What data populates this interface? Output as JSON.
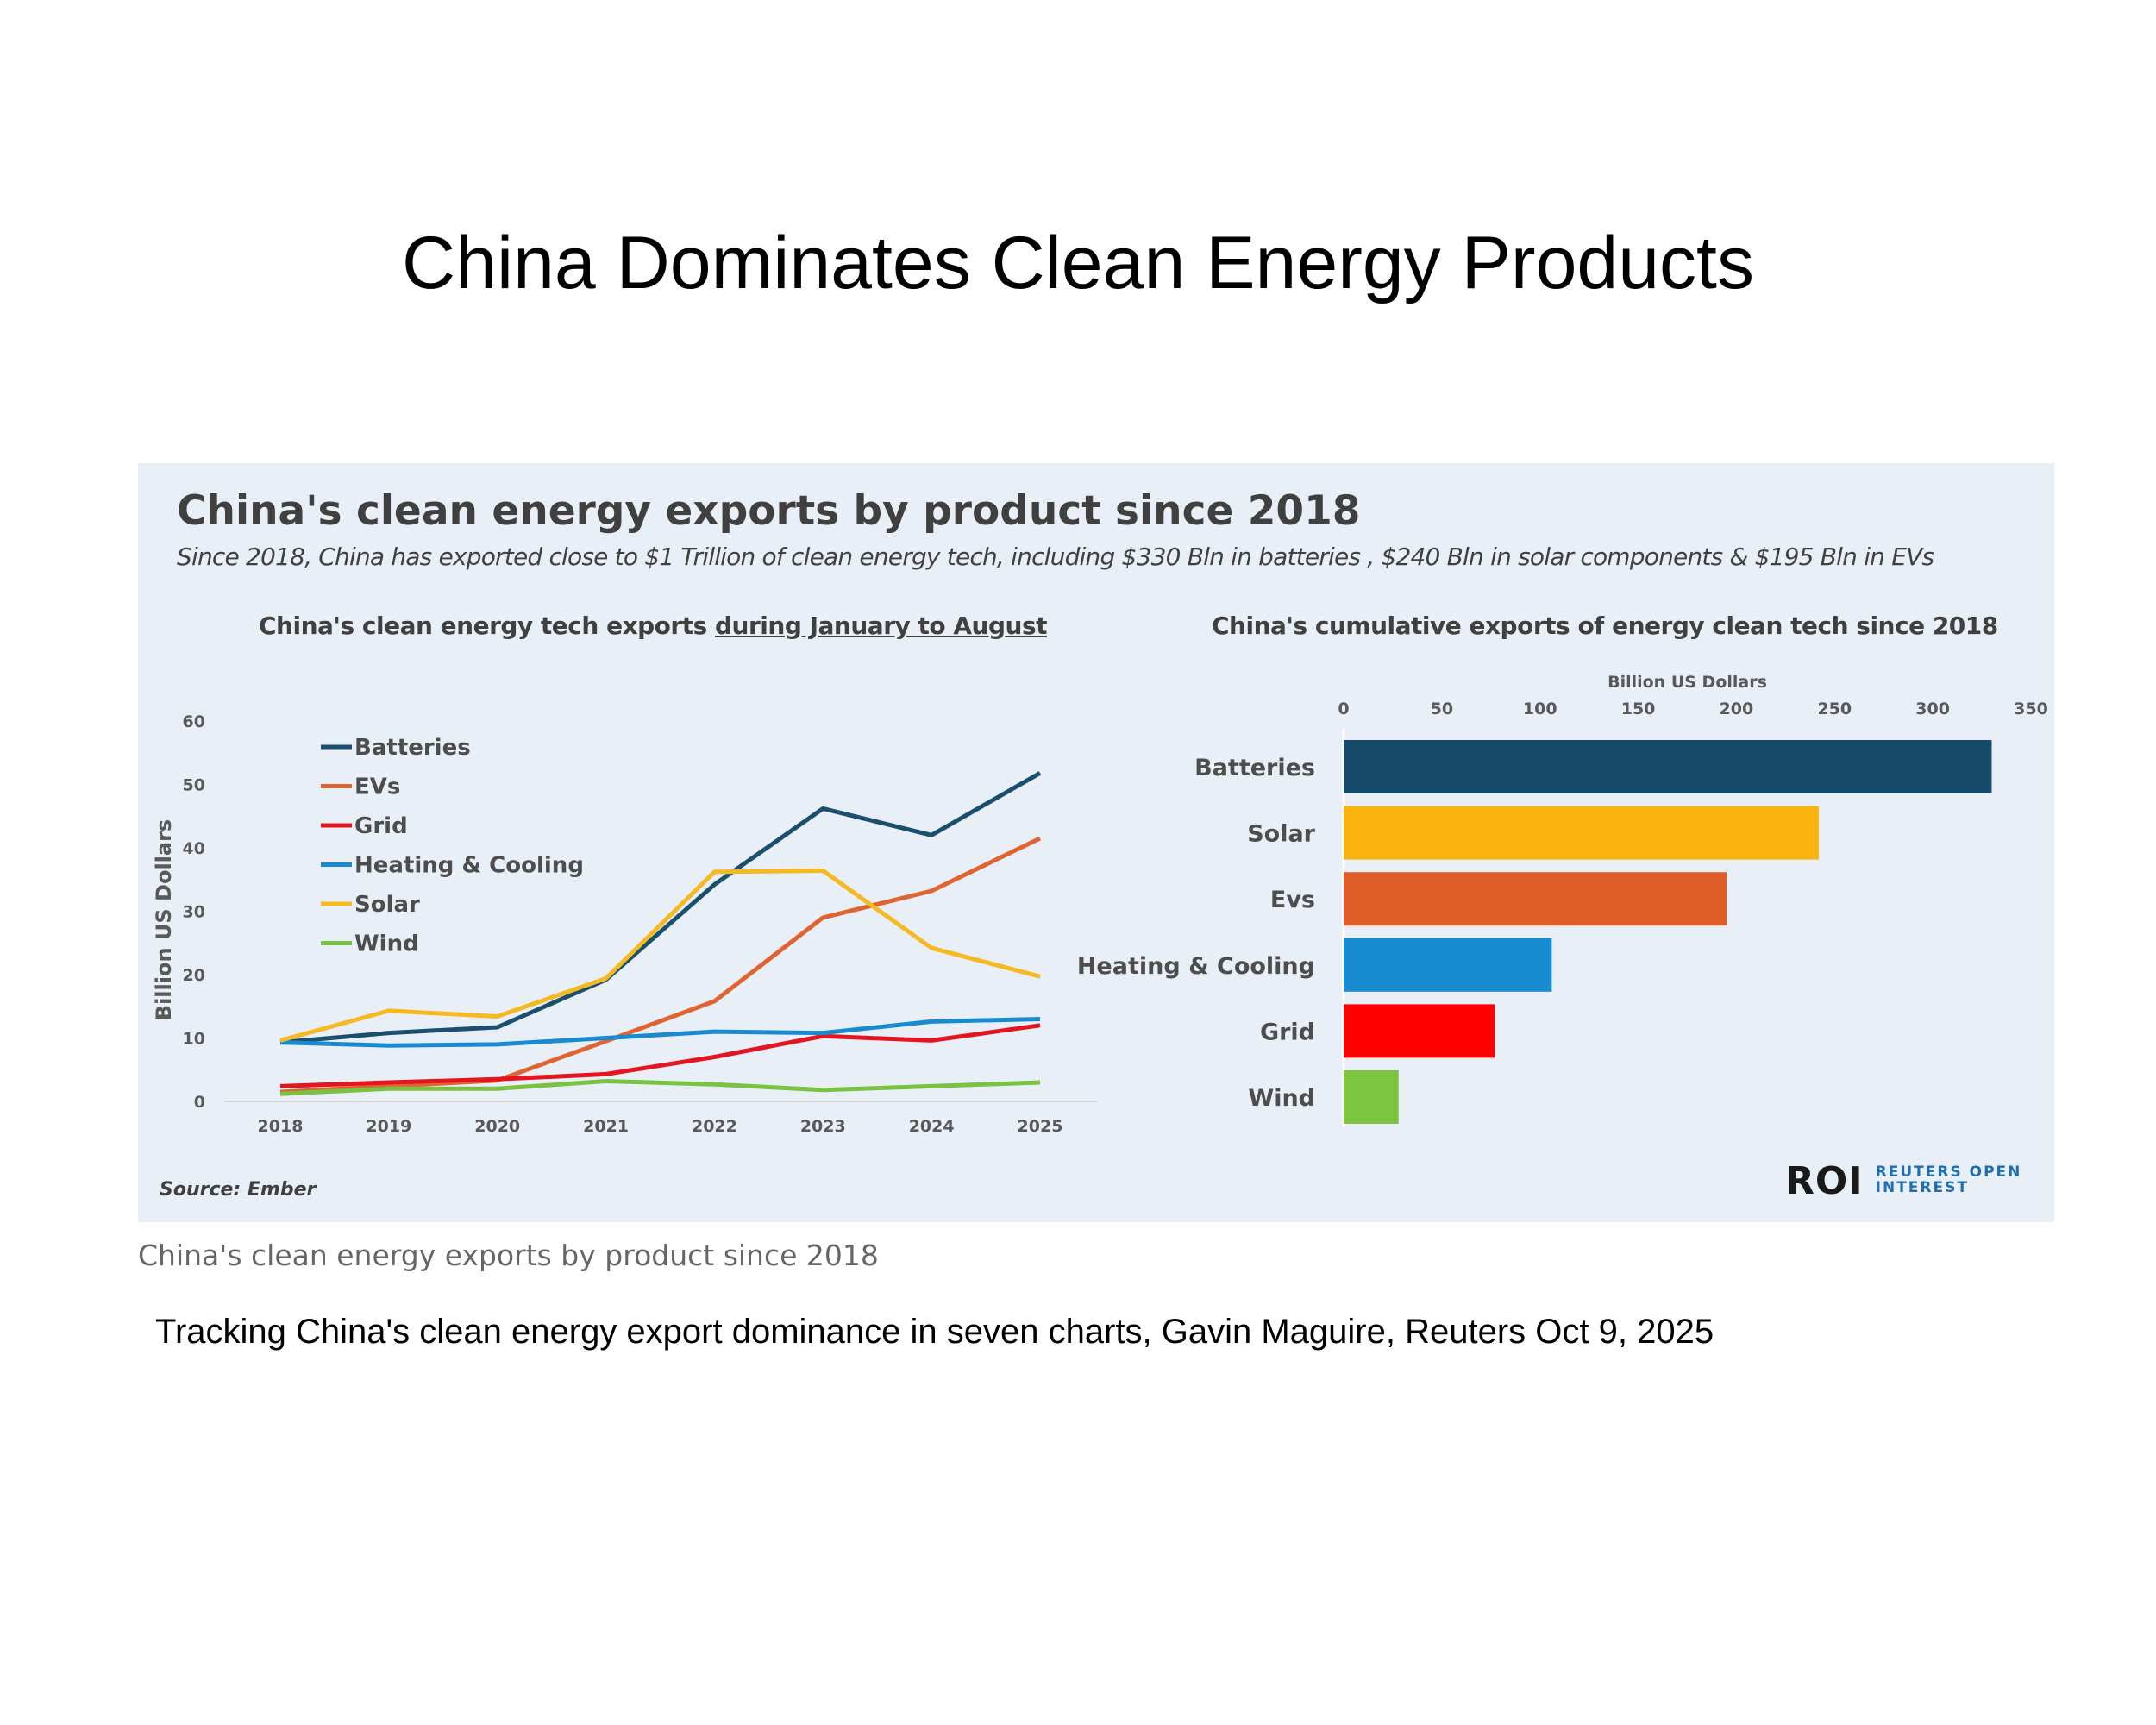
{
  "slide": {
    "title": "China Dominates Clean Energy Products",
    "caption": "China's clean energy exports by product since 2018",
    "credit": "Tracking China's clean energy export dominance in seven charts, Gavin Maguire, Reuters Oct 9, 2025"
  },
  "panel": {
    "title": "China's clean energy exports by product since 2018",
    "subtitle": "Since 2018, China has exported close to $1 Trillion of clean energy tech, including $330 Bln in batteries , $240 Bln in solar components & $195 Bln in EVs",
    "source": "Source: Ember",
    "logo": {
      "mark": "ROI",
      "line1": "REUTERS OPEN",
      "line2": "INTEREST"
    }
  },
  "chart_data": [
    {
      "type": "line",
      "title_prefix": "China's clean energy tech exports ",
      "title_emphasis": "during January to August",
      "xlabel": "",
      "ylabel": "Billion US Dollars",
      "x": [
        "2018",
        "2019",
        "2020",
        "2021",
        "2022",
        "2023",
        "2024",
        "2025"
      ],
      "ylim": [
        0,
        60
      ],
      "yticks": [
        0,
        10,
        20,
        30,
        40,
        50,
        60
      ],
      "legend_position": "top-left",
      "series": [
        {
          "name": "Batteries",
          "color": "#1b4f6e",
          "values": [
            9.3,
            10.8,
            11.7,
            19.2,
            34.2,
            46.2,
            42,
            51.8
          ]
        },
        {
          "name": "EVs",
          "color": "#e06431",
          "values": [
            1.5,
            2.4,
            3.3,
            9.5,
            15.8,
            29,
            33.2,
            41.5
          ]
        },
        {
          "name": "Grid",
          "color": "#e3161f",
          "values": [
            2.4,
            3.0,
            3.5,
            4.3,
            7.0,
            10.3,
            9.6,
            12.0
          ]
        },
        {
          "name": "Heating & Cooling",
          "color": "#1a8ad0",
          "values": [
            9.3,
            8.8,
            9.0,
            10.0,
            11.0,
            10.8,
            12.6,
            13.0
          ]
        },
        {
          "name": "Solar",
          "color": "#f5b921",
          "values": [
            9.6,
            14.3,
            13.4,
            19.4,
            36.2,
            36.4,
            24.2,
            19.7
          ]
        },
        {
          "name": "Wind",
          "color": "#7cc242",
          "values": [
            1.2,
            2.0,
            2.0,
            3.2,
            2.7,
            1.8,
            2.4,
            3.0
          ]
        }
      ]
    },
    {
      "type": "bar",
      "orientation": "horizontal",
      "title": "China's cumulative exports of energy clean tech since 2018",
      "xlabel": "Billion US Dollars",
      "xlim": [
        0,
        350
      ],
      "xticks": [
        0,
        50,
        100,
        150,
        200,
        250,
        300,
        350
      ],
      "categories": [
        "Batteries",
        "Solar",
        "Evs",
        "Heating & Cooling",
        "Grid",
        "Wind"
      ],
      "values": [
        330,
        242,
        195,
        106,
        77,
        28
      ],
      "colors": [
        "#154a6b",
        "#fbb310",
        "#e15d29",
        "#188bd1",
        "#fe0000",
        "#7dc63f"
      ]
    }
  ]
}
